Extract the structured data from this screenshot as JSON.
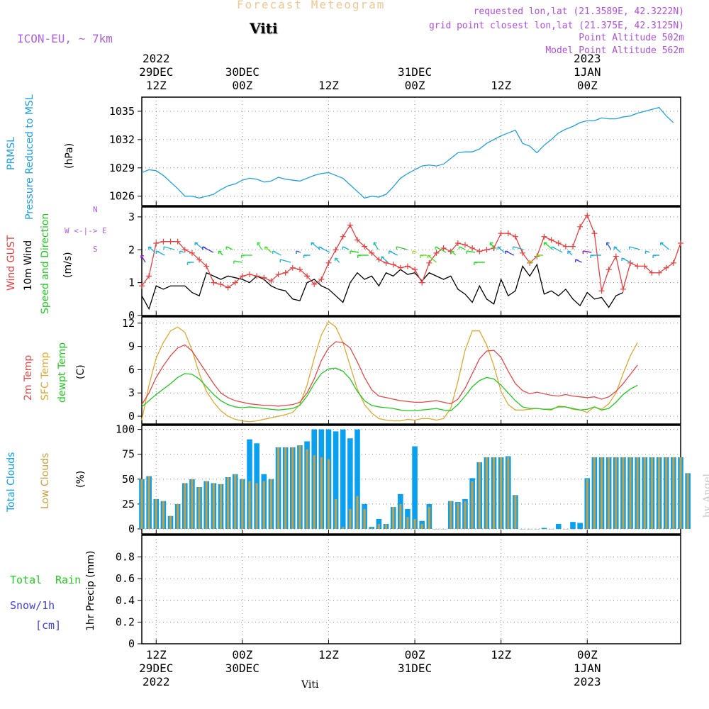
{
  "header": {
    "title": "Forecast Meteogram",
    "station": "Viti",
    "model": "ICON-EU, ~ 7km",
    "requested": "requested lon,lat (21.3589E, 42.3222N)",
    "gridpoint": "grid point closest lon,lat (21.375E, 42.3125N)",
    "point_alt": "Point Altitude 502m",
    "model_alt": "Model Point Altitude 562m",
    "footer_station": "Viti",
    "watermark": "by Angel"
  },
  "time_axis": {
    "top_labels": [
      {
        "lines": [
          "2022",
          "29DEC",
          "12Z"
        ]
      },
      {
        "lines": [
          "30DEC",
          "00Z"
        ]
      },
      {
        "lines": [
          "12Z"
        ]
      },
      {
        "lines": [
          "31DEC",
          "00Z"
        ]
      },
      {
        "lines": [
          "12Z"
        ]
      },
      {
        "lines": [
          "2023",
          "1JAN",
          "00Z"
        ]
      }
    ],
    "bottom_labels": [
      {
        "lines": [
          "12Z",
          "29DEC",
          "2022"
        ]
      },
      {
        "lines": [
          "00Z",
          "30DEC"
        ]
      },
      {
        "lines": [
          "12Z"
        ]
      },
      {
        "lines": [
          "00Z",
          "31DEC"
        ]
      },
      {
        "lines": [
          "12Z"
        ]
      },
      {
        "lines": [
          "00Z",
          "1JAN",
          "2023"
        ]
      }
    ]
  },
  "labels": {
    "p1": {
      "a": "PRMSL",
      "b": "Pressure Reduced to MSL",
      "unit": "(hPa)"
    },
    "p2": {
      "a": "Wind GUST",
      "b": "10m Wind",
      "c": "Speed and Direction",
      "unit": "(m/s)",
      "compass_n": "N",
      "compass_s": "S",
      "compass_w": "W <-|-> E"
    },
    "p3": {
      "a": "2m Temp",
      "b": "SFC Temp",
      "c": "dewpt Temp",
      "unit": "(C)"
    },
    "p4": {
      "a": "Total Clouds",
      "b": "Low Clouds",
      "unit": "(%)"
    },
    "p5": {
      "a": "Total",
      "a2": "Rain",
      "b": "Snow/1h",
      "c": "[cm]",
      "unit": "1hr Precip (mm)"
    }
  },
  "colors": {
    "pressure": "#1ea0e8",
    "gust": "#e84040",
    "wind": "#000000",
    "temp2m": "#e84848",
    "sfctemp": "#e0a830",
    "dewpt": "#20cc20",
    "total_clouds": "#0aa0f0",
    "low_clouds": "#c8a040",
    "rain": "#20cc20",
    "snow": "#4040e0",
    "model_label": "#b060e0"
  },
  "chart_data": [
    {
      "type": "line",
      "title": "",
      "ylabel": "PRMSL Pressure Reduced to MSL (hPa)",
      "y_ticks": [
        1026,
        1029,
        1032,
        1035
      ],
      "ylim": [
        1025,
        1036.5
      ],
      "x_start_hour": 2,
      "x_step_hours": 1,
      "series": [
        {
          "name": "PRMSL",
          "values": [
            1028.5,
            1028.8,
            1028.7,
            1028.2,
            1027.5,
            1026.8,
            1026.0,
            1026.0,
            1025.8,
            1026.0,
            1026.2,
            1026.7,
            1027.1,
            1027.3,
            1027.7,
            1027.9,
            1027.8,
            1027.5,
            1027.6,
            1028.0,
            1027.8,
            1027.7,
            1027.6,
            1027.9,
            1028.2,
            1028.4,
            1028.5,
            1028.2,
            1027.9,
            1027.2,
            1026.5,
            1025.8,
            1026.0,
            1025.9,
            1026.2,
            1027.0,
            1027.9,
            1028.4,
            1028.8,
            1029.2,
            1029.3,
            1029.2,
            1029.4,
            1030.0,
            1030.6,
            1030.7,
            1030.7,
            1031.0,
            1031.6,
            1032.0,
            1032.4,
            1032.7,
            1033.0,
            1031.6,
            1031.3,
            1030.6,
            1031.4,
            1032.0,
            1032.7,
            1033.1,
            1033.4,
            1033.8,
            1034.0,
            1034.0,
            1034.3,
            1034.2,
            1034.2,
            1034.4,
            1034.5,
            1034.8,
            1035.0,
            1035.2,
            1035.4,
            1034.5,
            1033.8
          ]
        }
      ]
    },
    {
      "type": "line",
      "title": "",
      "ylabel": "Wind GUST / 10m Wind Speed and Direction (m/s)",
      "y_ticks": [
        0,
        1,
        2,
        3
      ],
      "ylim": [
        0,
        3.3
      ],
      "x_start_hour": 2,
      "x_step_hours": 1,
      "series": [
        {
          "name": "Wind GUST",
          "values": [
            0.9,
            1.2,
            2.2,
            2.25,
            2.25,
            2.25,
            2.0,
            1.9,
            1.7,
            1.5,
            1.0,
            0.95,
            0.85,
            1.0,
            1.2,
            1.25,
            1.2,
            1.15,
            1.05,
            1.25,
            1.3,
            1.45,
            1.4,
            1.2,
            0.95,
            1.1,
            1.6,
            2.0,
            2.4,
            2.75,
            2.3,
            2.1,
            1.9,
            1.7,
            1.6,
            1.55,
            1.45,
            1.5,
            1.4,
            1.0,
            1.6,
            1.9,
            2.05,
            1.95,
            2.2,
            2.15,
            2.05,
            1.95,
            2.0,
            2.05,
            2.5,
            2.5,
            2.4,
            1.9,
            1.6,
            1.8,
            2.4,
            2.3,
            2.2,
            2.1,
            2.1,
            2.7,
            3.05,
            2.5,
            0.75,
            1.4,
            1.8,
            0.8,
            1.6,
            1.5,
            1.5,
            1.3,
            1.3,
            1.45,
            1.6,
            2.2
          ]
        },
        {
          "name": "10m Wind",
          "values": [
            0.6,
            0.2,
            0.9,
            0.8,
            0.9,
            0.9,
            0.9,
            0.7,
            0.6,
            1.3,
            1.2,
            1.1,
            1.2,
            1.15,
            1.1,
            1.0,
            1.2,
            1.1,
            0.9,
            0.8,
            0.75,
            0.5,
            0.45,
            1.0,
            1.1,
            0.9,
            0.8,
            0.6,
            0.4,
            1.0,
            1.3,
            1.1,
            1.2,
            0.9,
            1.3,
            1.2,
            1.4,
            1.25,
            1.3,
            1.05,
            1.3,
            1.2,
            1.1,
            1.2,
            0.8,
            0.65,
            0.4,
            0.9,
            0.5,
            0.35,
            1.1,
            0.6,
            0.75,
            1.5,
            1.2,
            1.55,
            0.65,
            0.75,
            0.6,
            0.8,
            0.5,
            0.3,
            0.7,
            0.5,
            0.55,
            0.25,
            0.6,
            0.7
          ]
        }
      ]
    },
    {
      "type": "line",
      "title": "",
      "ylabel": "2m Temp / SFC Temp / dewpt Temp (C)",
      "y_ticks": [
        0,
        3,
        6,
        9,
        12
      ],
      "ylim": [
        -1,
        12.8
      ],
      "x_start_hour": 2,
      "x_step_hours": 1,
      "series": [
        {
          "name": "2m Temp",
          "values": [
            1.5,
            3.0,
            5.0,
            6.5,
            7.8,
            8.8,
            9.2,
            8.4,
            7.0,
            5.6,
            4.2,
            3.0,
            2.4,
            2.0,
            1.8,
            1.6,
            1.5,
            1.4,
            1.4,
            1.3,
            1.4,
            1.5,
            1.8,
            3.0,
            4.8,
            7.2,
            8.8,
            9.6,
            9.5,
            8.8,
            7.0,
            5.0,
            3.4,
            2.6,
            2.4,
            2.2,
            2.0,
            1.9,
            1.8,
            1.8,
            1.9,
            2.0,
            1.8,
            1.6,
            2.2,
            3.6,
            5.5,
            7.4,
            8.4,
            8.5,
            7.6,
            5.8,
            4.2,
            3.3,
            2.9,
            3.1,
            2.9,
            2.7,
            2.6,
            2.8,
            2.6,
            2.5,
            2.4,
            2.5,
            2.2,
            2.5,
            3.2,
            4.2,
            5.4,
            6.6
          ]
        },
        {
          "name": "SFC Temp",
          "values": [
            -0.5,
            4.0,
            7.5,
            9.5,
            11.0,
            11.5,
            10.8,
            8.5,
            5.5,
            3.2,
            1.8,
            0.7,
            0.0,
            -0.4,
            -0.6,
            -0.7,
            -0.6,
            -0.4,
            -0.2,
            0.0,
            0.2,
            0.5,
            1.5,
            4.0,
            7.5,
            10.5,
            12.2,
            11.5,
            9.5,
            6.5,
            3.5,
            1.5,
            0.4,
            -0.3,
            -0.5,
            -0.6,
            -0.6,
            -0.4,
            -0.5,
            -0.3,
            -0.3,
            -0.5,
            -0.3,
            1.0,
            4.5,
            8.5,
            11.0,
            11.0,
            9.2,
            6.5,
            3.2,
            1.5,
            0.8,
            0.8,
            0.9,
            1.0,
            0.9,
            0.8,
            1.3,
            1.2,
            0.9,
            0.8,
            0.5,
            1.2,
            0.9,
            1.6,
            3.0,
            5.5,
            7.8,
            9.5
          ]
        },
        {
          "name": "dewpt Temp",
          "values": [
            1.2,
            2.0,
            2.8,
            3.5,
            4.2,
            5.0,
            5.5,
            5.4,
            4.8,
            3.8,
            2.8,
            2.0,
            1.5,
            1.2,
            1.1,
            1.2,
            1.1,
            1.0,
            0.9,
            0.8,
            0.9,
            1.0,
            1.4,
            2.6,
            4.2,
            5.5,
            6.1,
            6.2,
            5.8,
            4.8,
            3.2,
            2.0,
            1.4,
            1.2,
            1.1,
            1.0,
            0.8,
            0.7,
            0.7,
            0.8,
            0.9,
            1.0,
            0.8,
            0.7,
            1.5,
            2.6,
            3.8,
            4.6,
            5.0,
            4.8,
            4.0,
            3.0,
            2.0,
            1.2,
            1.0,
            1.0,
            0.9,
            0.9,
            1.2,
            1.2,
            1.0,
            0.8,
            0.9,
            1.2,
            0.8,
            1.0,
            1.8,
            2.8,
            3.5,
            4.0
          ]
        }
      ]
    },
    {
      "type": "bar",
      "title": "",
      "ylabel": "Total Clouds / Low Clouds (%)",
      "y_ticks": [
        0,
        25,
        50,
        75,
        100
      ],
      "ylim": [
        -5,
        104
      ],
      "x_start_hour": 2,
      "x_step_hours": 1,
      "series": [
        {
          "name": "Total Clouds",
          "values": [
            50,
            53,
            30,
            28,
            13,
            25,
            46,
            50,
            42,
            48,
            46,
            45,
            52,
            55,
            50,
            90,
            86,
            55,
            50,
            82,
            82,
            82,
            84,
            88,
            100,
            100,
            100,
            98,
            100,
            91,
            100,
            25,
            2,
            10,
            5,
            22,
            35,
            20,
            83,
            8,
            25,
            0,
            0,
            28,
            27,
            30,
            51,
            67,
            72,
            72,
            72,
            73,
            34,
            0,
            0,
            0,
            1,
            0,
            5,
            0,
            7,
            6,
            51,
            72,
            72,
            72,
            72,
            72,
            72,
            72,
            72,
            72,
            72,
            72,
            72,
            72,
            56
          ]
        },
        {
          "name": "Low Clouds",
          "values": [
            50,
            53,
            30,
            28,
            13,
            25,
            46,
            50,
            42,
            48,
            46,
            45,
            52,
            55,
            50,
            48,
            46,
            48,
            50,
            82,
            82,
            82,
            84,
            80,
            74,
            72,
            70,
            30,
            2,
            20,
            33,
            20,
            1,
            5,
            5,
            22,
            25,
            12,
            10,
            5,
            22,
            0,
            0,
            28,
            26,
            28,
            48,
            67,
            72,
            72,
            72,
            72,
            34,
            0,
            0,
            0,
            0,
            0,
            0,
            0,
            0,
            0,
            50,
            72,
            72,
            72,
            72,
            72,
            72,
            72,
            72,
            72,
            72,
            72,
            72,
            72,
            56
          ]
        }
      ]
    },
    {
      "type": "bar",
      "title": "",
      "ylabel": "1hr Precip (mm)",
      "y_ticks": [
        0,
        0.2,
        0.4,
        0.6,
        0.8
      ],
      "ylim": [
        0,
        1.0
      ],
      "x_start_hour": 2,
      "x_step_hours": 1,
      "series": [
        {
          "name": "Total Rain",
          "values": []
        },
        {
          "name": "Snow/1h",
          "values": []
        }
      ]
    }
  ]
}
